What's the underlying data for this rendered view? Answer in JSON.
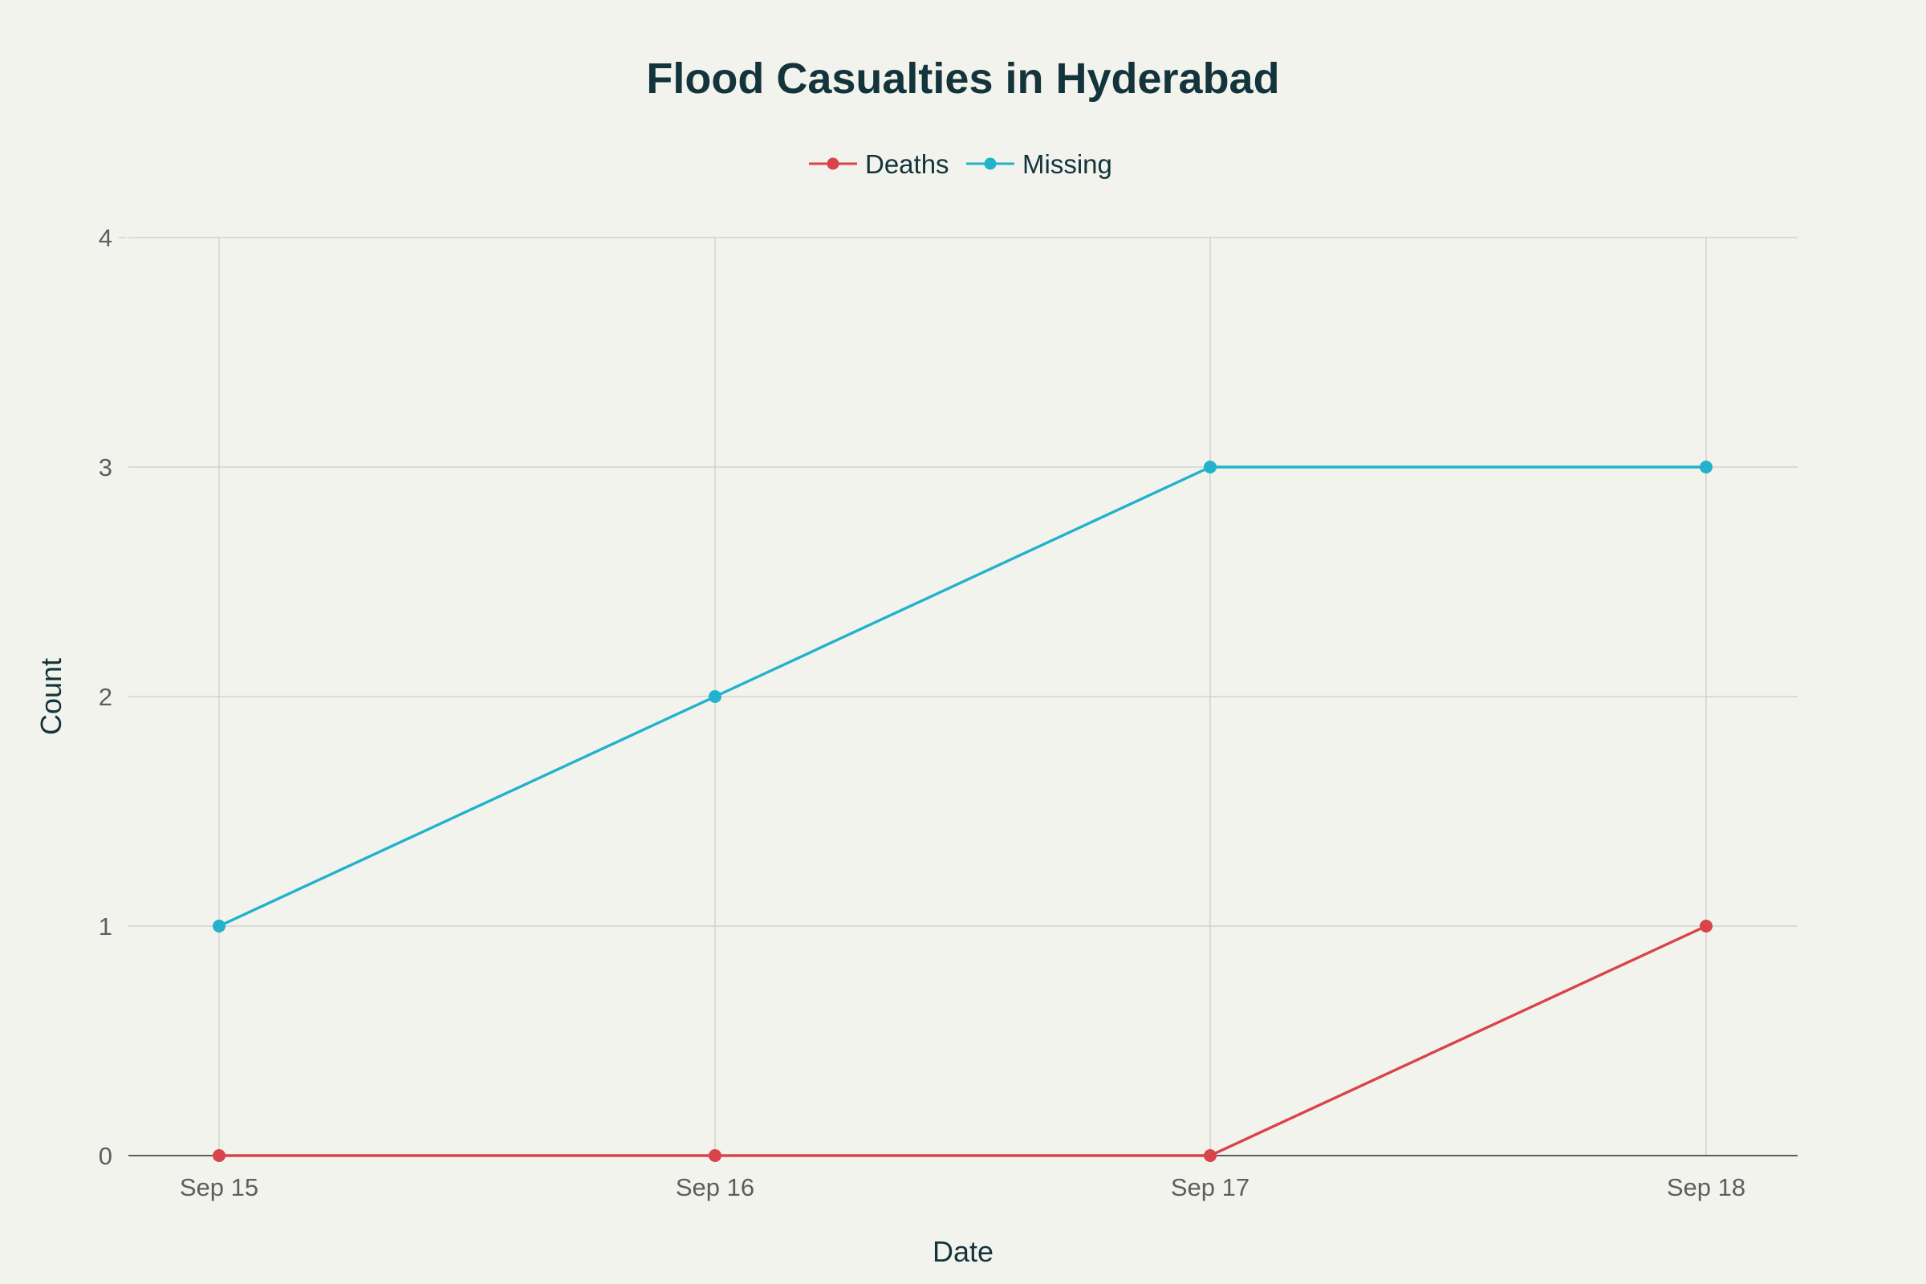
{
  "chart_data": {
    "type": "line",
    "title": "Flood Casualties in Hyderabad",
    "xlabel": "Date",
    "ylabel": "Count",
    "categories": [
      "Sep 15",
      "Sep 16",
      "Sep 17",
      "Sep 18"
    ],
    "ylim": [
      0,
      4
    ],
    "yticks": [
      0,
      1,
      2,
      3,
      4
    ],
    "grid": true,
    "legend_position": "top-center",
    "series": [
      {
        "name": "Deaths",
        "values": [
          0,
          0,
          0,
          1
        ],
        "color": "#d9434a"
      },
      {
        "name": "Missing",
        "values": [
          1,
          2,
          3,
          3
        ],
        "color": "#22b2cb"
      }
    ]
  }
}
